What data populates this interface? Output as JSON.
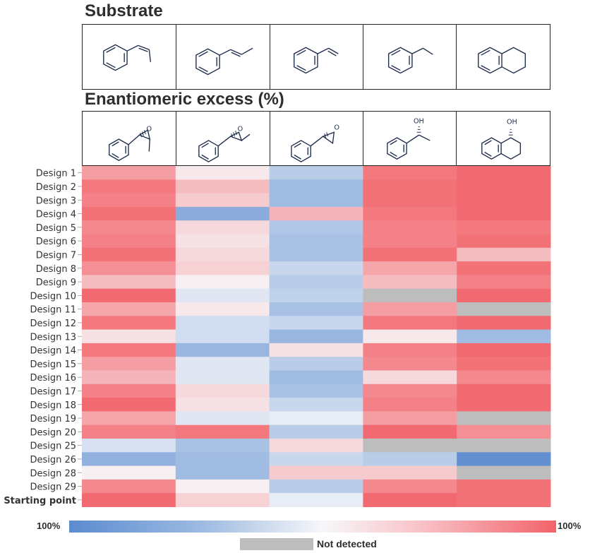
{
  "titles": {
    "substrate": "Substrate",
    "ee": "Enantiomeric excess (%)"
  },
  "substrates": [
    {
      "name": "cis-beta-methylstyrene"
    },
    {
      "name": "trans-beta-methylstyrene"
    },
    {
      "name": "styrene"
    },
    {
      "name": "ethylbenzene"
    },
    {
      "name": "tetralin"
    }
  ],
  "products": [
    {
      "name": "cis-epoxide",
      "label": ""
    },
    {
      "name": "trans-epoxide",
      "label": ""
    },
    {
      "name": "styrene-oxide",
      "label": ""
    },
    {
      "name": "1-phenylethanol",
      "label": "OH"
    },
    {
      "name": "1-tetralol",
      "label": "OH"
    }
  ],
  "legend": {
    "min_label": "100%",
    "max_label": "100%",
    "not_detected_label": "Not detected",
    "colors": {
      "blue": "#5b8bcf",
      "white": "#f7f7f9",
      "red": "#f2636a",
      "not_detected": "#bdbdbd"
    }
  },
  "chart_data": {
    "type": "heatmap",
    "title": "Enantiomeric excess (%)",
    "value_scale": "-100 (blue) to +100 (red); null = Not detected",
    "vmin": -100,
    "vmax": 100,
    "rows": [
      "Design 1",
      "Design 2",
      "Design 3",
      "Design 4",
      "Design 5",
      "Design 6",
      "Design 7",
      "Design 8",
      "Design 9",
      "Design 10",
      "Design 11",
      "Design 12",
      "Design 13",
      "Design 14",
      "Design 15",
      "Design 16",
      "Design 17",
      "Design 18",
      "Design 19",
      "Design 20",
      "Design 25",
      "Design 26",
      "Design 28",
      "Design 29",
      "Starting point"
    ],
    "columns": [
      "cis-beta-methylstyrene",
      "trans-beta-methylstyrene",
      "styrene",
      "ethylbenzene",
      "tetralin"
    ],
    "values": [
      [
        60,
        10,
        -40,
        85,
        95
      ],
      [
        85,
        40,
        -55,
        90,
        95
      ],
      [
        80,
        30,
        -55,
        90,
        95
      ],
      [
        90,
        -70,
        45,
        85,
        95
      ],
      [
        75,
        20,
        -45,
        80,
        85
      ],
      [
        80,
        15,
        -50,
        80,
        90
      ],
      [
        90,
        20,
        -50,
        90,
        40
      ],
      [
        70,
        25,
        -30,
        55,
        90
      ],
      [
        40,
        5,
        -40,
        40,
        80
      ],
      [
        95,
        -15,
        -35,
        null,
        95
      ],
      [
        55,
        10,
        -50,
        60,
        null
      ],
      [
        85,
        -25,
        -30,
        85,
        95
      ],
      [
        15,
        -25,
        -60,
        10,
        -55
      ],
      [
        85,
        -60,
        15,
        80,
        95
      ],
      [
        60,
        -15,
        -40,
        75,
        90
      ],
      [
        45,
        -15,
        -55,
        20,
        75
      ],
      [
        80,
        20,
        -50,
        75,
        95
      ],
      [
        95,
        15,
        -30,
        80,
        95
      ],
      [
        55,
        -15,
        -10,
        60,
        null
      ],
      [
        80,
        85,
        -40,
        95,
        70
      ],
      [
        -20,
        -50,
        20,
        null,
        null
      ],
      [
        -65,
        -55,
        -30,
        -40,
        -95
      ],
      [
        5,
        -55,
        30,
        30,
        null
      ],
      [
        75,
        5,
        -40,
        75,
        90
      ],
      [
        95,
        25,
        -10,
        95,
        90
      ]
    ]
  }
}
